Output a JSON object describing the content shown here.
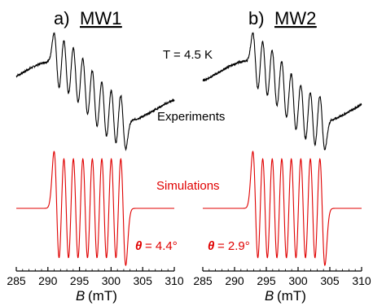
{
  "chart_data": [
    {
      "type": "line",
      "panel_label": "a)",
      "panel_name": "MW1",
      "xlabel_symbol": "B",
      "xlabel_unit": "(mT)",
      "xlim": [
        285,
        310
      ],
      "xticks": [
        285,
        290,
        295,
        300,
        305,
        310
      ],
      "annotations": {
        "temperature": "T = 4.5 K",
        "experiments": "Experiments",
        "simulations": "Simulations",
        "theta_symbol": "θ",
        "theta_value": "= 4.4°"
      },
      "series": [
        {
          "name": "Experiments",
          "color": "#000000",
          "x_range": [
            285,
            310
          ],
          "peaks": [
            291.4,
            292.9,
            294.4,
            295.9,
            297.4,
            298.9,
            300.4,
            301.9
          ],
          "envelope_center": 296.5
        },
        {
          "name": "Simulations",
          "color": "#e00000",
          "x_range": [
            285,
            310
          ],
          "peaks": [
            291.4,
            292.9,
            294.4,
            295.9,
            297.4,
            298.9,
            300.4,
            301.9
          ]
        }
      ]
    },
    {
      "type": "line",
      "panel_label": "b)",
      "panel_name": "MW2",
      "xlabel_symbol": "B",
      "xlabel_unit": "(mT)",
      "xlim": [
        285,
        310
      ],
      "xticks": [
        285,
        290,
        295,
        300,
        305,
        310
      ],
      "annotations": {
        "theta_symbol": "θ",
        "theta_value": "= 2.9°"
      },
      "series": [
        {
          "name": "Experiments",
          "color": "#000000",
          "x_range": [
            285,
            310
          ],
          "peaks": [
            293.3,
            294.8,
            296.3,
            297.8,
            299.3,
            300.8,
            302.3,
            303.8
          ],
          "envelope_center": 298.0
        },
        {
          "name": "Simulations",
          "color": "#e00000",
          "x_range": [
            285,
            310
          ],
          "peaks": [
            293.3,
            294.8,
            296.3,
            297.8,
            299.3,
            300.8,
            302.3,
            303.8
          ]
        }
      ]
    }
  ]
}
